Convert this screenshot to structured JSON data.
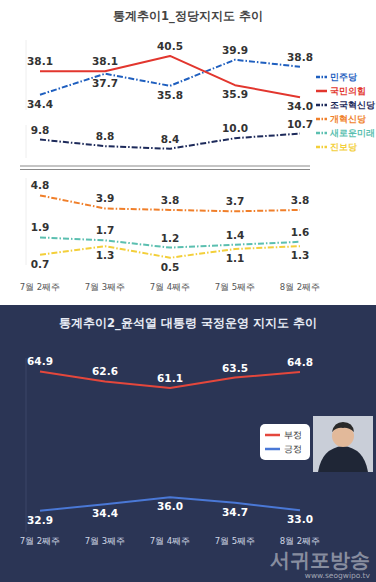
{
  "chart_data": [
    {
      "type": "line",
      "title": "통계추이1_정당지지도 추이",
      "categories": [
        "7월 2째주",
        "7월 3째주",
        "7월 4째주",
        "7월 5째주",
        "8월 2째주"
      ],
      "ylim": [
        32,
        43
      ],
      "tick_labels": false,
      "data_labels": true,
      "legend": "right",
      "series": [
        {
          "name": "민주당",
          "color": "#1f5fbf",
          "line_style": "dashdot",
          "values": [
            34.4,
            37.7,
            35.8,
            39.9,
            38.8
          ],
          "value_labels": [
            "34.4",
            "37.7",
            "35.8",
            "39.9",
            "38.8"
          ]
        },
        {
          "name": "국민의힘",
          "color": "#e2362e",
          "line_style": "solid",
          "values": [
            38.1,
            38.1,
            40.5,
            35.9,
            34.0
          ],
          "value_labels": [
            "38.1",
            "38.1",
            "40.5",
            "35.9",
            "34.0"
          ]
        }
      ]
    },
    {
      "type": "line",
      "categories": [
        "7월 2째주",
        "7월 3째주",
        "7월 4째주",
        "7월 5째주",
        "8월 2째주"
      ],
      "ylim": [
        7,
        12
      ],
      "tick_labels": false,
      "data_labels": true,
      "series": [
        {
          "name": "조국혁신당",
          "color": "#1d2a5a",
          "line_style": "dashdot",
          "values": [
            9.8,
            8.8,
            8.4,
            10.0,
            10.7
          ],
          "value_labels": [
            "9.8",
            "8.8",
            "8.4",
            "10.0",
            "10.7"
          ]
        }
      ]
    },
    {
      "type": "line",
      "categories": [
        "7월 2째주",
        "7월 3째주",
        "7월 4째주",
        "7월 5째주",
        "8월 2째주"
      ],
      "ylim": [
        0,
        6
      ],
      "tick_labels": "x",
      "data_labels": true,
      "series": [
        {
          "name": "개혁신당",
          "color": "#f07f2a",
          "line_style": "dashdot",
          "values": [
            4.8,
            3.9,
            3.8,
            3.7,
            3.8
          ],
          "value_labels": [
            "4.8",
            "3.9",
            "3.8",
            "3.7",
            "3.8"
          ]
        },
        {
          "name": "새로운미래",
          "color": "#5bbfb0",
          "line_style": "dashdot",
          "values": [
            1.9,
            1.7,
            1.2,
            1.4,
            1.6
          ],
          "value_labels": [
            "1.9",
            "1.7",
            "1.2",
            "1.4",
            "1.6"
          ]
        },
        {
          "name": "진보당",
          "color": "#f3cf3a",
          "line_style": "dashdot",
          "values": [
            0.7,
            1.3,
            0.5,
            1.1,
            1.3
          ],
          "value_labels": [
            "0.7",
            "1.3",
            "0.5",
            "1.1",
            "1.3"
          ]
        }
      ]
    },
    {
      "type": "line",
      "title": "통계추이2_윤석열 대통령 국정운영 지지도 추이",
      "categories": [
        "7월 2째주",
        "7월 3째주",
        "7월 4째주",
        "7월 5째주",
        "8월 2째주"
      ],
      "ylim": [
        28,
        68
      ],
      "tick_labels": "x",
      "data_labels": true,
      "legend": "right",
      "annotations": [
        "서귀포방송",
        "www.seogwipo.tv"
      ],
      "series": [
        {
          "name": "부정",
          "color": "#e4473c",
          "line_style": "solid",
          "values": [
            64.9,
            62.6,
            61.1,
            63.5,
            64.8
          ],
          "value_labels": [
            "64.9",
            "62.6",
            "61.1",
            "63.5",
            "64.8"
          ]
        },
        {
          "name": "긍정",
          "color": "#4a78d6",
          "line_style": "solid",
          "values": [
            32.9,
            34.4,
            36.0,
            34.7,
            33.0
          ],
          "value_labels": [
            "32.9",
            "34.4",
            "36.0",
            "34.7",
            "33.0"
          ]
        }
      ]
    }
  ]
}
